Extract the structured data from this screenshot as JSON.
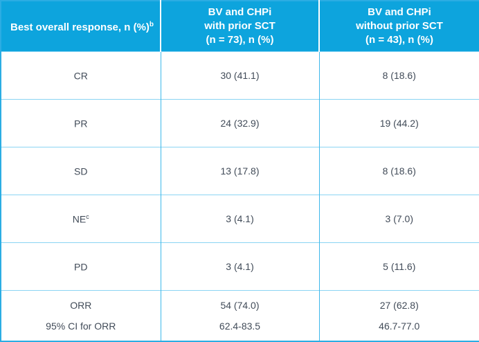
{
  "theme": {
    "header_bg": "#0da4dd",
    "header_text": "#ffffff",
    "body_text": "#414b58",
    "grid_horizontal": "#8ad4f3",
    "grid_vertical": "#3cb8ea",
    "outer_border": "#2bade3"
  },
  "table": {
    "header": {
      "col1_label": "Best overall response, n (%)",
      "col1_sup": "b",
      "col2_lines": [
        "BV and CHPi",
        "with prior SCT",
        "(n = 73), n (%)"
      ],
      "col3_lines": [
        "BV and CHPi",
        "without prior SCT",
        "(n = 43), n (%)"
      ]
    },
    "rows": [
      {
        "label": "CR",
        "label_sup": "",
        "with_sct": "30 (41.1)",
        "without_sct": "8 (18.6)"
      },
      {
        "label": "PR",
        "label_sup": "",
        "with_sct": "24 (32.9)",
        "without_sct": "19 (44.2)"
      },
      {
        "label": "SD",
        "label_sup": "",
        "with_sct": "13 (17.8)",
        "without_sct": "8 (18.6)"
      },
      {
        "label": "NE",
        "label_sup": "c",
        "with_sct": "3 (4.1)",
        "without_sct": "3 (7.0)"
      },
      {
        "label": "PD",
        "label_sup": "",
        "with_sct": "3 (4.1)",
        "without_sct": "5 (11.6)"
      }
    ],
    "orr_row": {
      "label_line1": "ORR",
      "label_line2": "95% CI for ORR",
      "with_sct_line1": "54 (74.0)",
      "with_sct_line2": "62.4-83.5",
      "without_sct_line1": "27 (62.8)",
      "without_sct_line2": "46.7-77.0"
    }
  }
}
